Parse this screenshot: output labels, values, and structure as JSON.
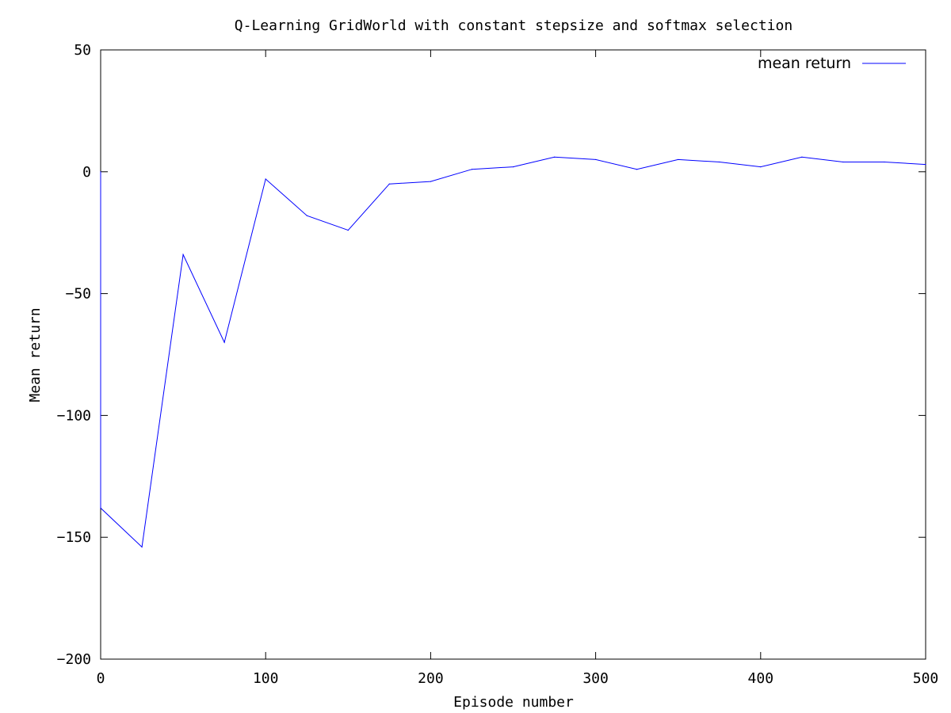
{
  "chart_data": {
    "type": "line",
    "title": "Q-Learning GridWorld with constant stepsize and softmax selection",
    "xlabel": "Episode number",
    "ylabel": "Mean return",
    "xlim": [
      0,
      500
    ],
    "ylim": [
      -200,
      50
    ],
    "xticks": [
      0,
      100,
      200,
      300,
      400,
      500
    ],
    "yticks": [
      -200,
      -150,
      -100,
      -50,
      0,
      50
    ],
    "xtick_labels": [
      "0",
      "100",
      "200",
      "300",
      "400",
      "500"
    ],
    "ytick_labels": [
      "−200",
      "−150",
      "−100",
      "−50",
      "0",
      "50"
    ],
    "grid": false,
    "legend_position": "top-right",
    "series": [
      {
        "name": "mean return",
        "color": "#0000ff",
        "x": [
          0,
          0,
          25,
          50,
          75,
          100,
          125,
          150,
          175,
          200,
          225,
          250,
          275,
          300,
          325,
          350,
          375,
          400,
          425,
          450,
          475,
          500
        ],
        "y": [
          0,
          -138,
          -154,
          -34,
          -70,
          -3,
          -18,
          -24,
          -5,
          -4,
          1,
          2,
          6,
          5,
          1,
          5,
          4,
          2,
          6,
          4,
          4,
          3
        ]
      }
    ]
  }
}
